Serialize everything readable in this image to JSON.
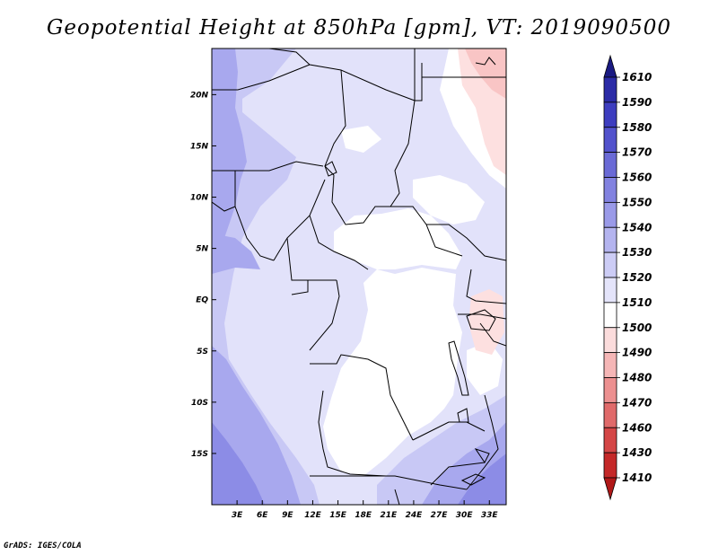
{
  "title": "Geopotential Height at 850hPa [gpm], VT: 2019090500",
  "credit": "GrADS: IGES/COLA",
  "map": {
    "lon_range": [
      0,
      35
    ],
    "lat_range": [
      -20,
      24.5
    ],
    "lon_ticks": [
      {
        "value": 3,
        "label": "3E"
      },
      {
        "value": 6,
        "label": "6E"
      },
      {
        "value": 9,
        "label": "9E"
      },
      {
        "value": 12,
        "label": "12E"
      },
      {
        "value": 15,
        "label": "15E"
      },
      {
        "value": 18,
        "label": "18E"
      },
      {
        "value": 21,
        "label": "21E"
      },
      {
        "value": 24,
        "label": "24E"
      },
      {
        "value": 27,
        "label": "27E"
      },
      {
        "value": 30,
        "label": "30E"
      },
      {
        "value": 33,
        "label": "33E"
      }
    ],
    "lat_ticks": [
      {
        "value": 20,
        "label": "20N"
      },
      {
        "value": 15,
        "label": "15N"
      },
      {
        "value": 10,
        "label": "10N"
      },
      {
        "value": 5,
        "label": "5N"
      },
      {
        "value": 0,
        "label": "EQ"
      },
      {
        "value": -5,
        "label": "5S"
      },
      {
        "value": -10,
        "label": "10S"
      },
      {
        "value": -15,
        "label": "15S"
      }
    ]
  },
  "colorbar": {
    "levels": [
      "1610",
      "1590",
      "1580",
      "1570",
      "1560",
      "1550",
      "1540",
      "1530",
      "1520",
      "1510",
      "1500",
      "1490",
      "1480",
      "1470",
      "1460",
      "1430",
      "1410"
    ],
    "colors": [
      "#1a1a82",
      "#2b2ba6",
      "#3d3dbf",
      "#5252cc",
      "#6a6ad6",
      "#8282e0",
      "#9a9ae8",
      "#b4b4ef",
      "#ccccf5",
      "#e4e4fa",
      "#ffffff",
      "#fbdcdc",
      "#f5b6b6",
      "#ec9090",
      "#e06a6a",
      "#d44646",
      "#c42828",
      "#b01818"
    ]
  },
  "colors": {
    "white": "#ffffff",
    "c1520": "#e2e2fa",
    "c1530": "#c8c8f5",
    "c1540": "#a8a8ee",
    "c1550": "#8c8ce6",
    "c1500": "#fde0e0",
    "c1490": "#f9c5c5",
    "border": "#000000"
  }
}
